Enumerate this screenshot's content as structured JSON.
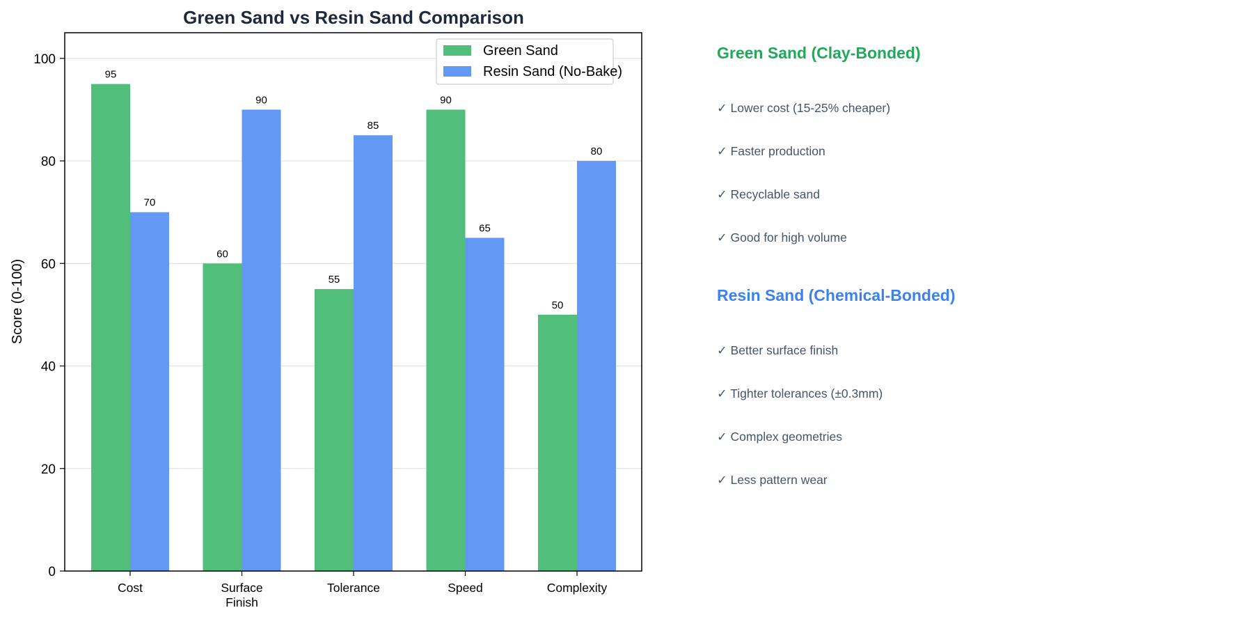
{
  "chart_data": {
    "type": "bar",
    "title": "Green Sand vs Resin Sand Comparison",
    "xlabel": "",
    "ylabel": "Score (0-100)",
    "ylim": [
      0,
      105
    ],
    "yticks": [
      0,
      20,
      40,
      60,
      80,
      100
    ],
    "grid": "horizontal",
    "legend_position": "top-right",
    "categories": [
      [
        "Cost"
      ],
      [
        "Surface",
        "Finish"
      ],
      [
        "Tolerance"
      ],
      [
        "Speed"
      ],
      [
        "Complexity"
      ]
    ],
    "series": [
      {
        "name": "Green Sand",
        "color": "#52be7c",
        "values": [
          95,
          60,
          55,
          90,
          50
        ]
      },
      {
        "name": "Resin Sand (No-Bake)",
        "color": "#6399f5",
        "values": [
          70,
          90,
          85,
          65,
          80
        ]
      }
    ]
  },
  "panel": {
    "green": {
      "heading": "Green Sand (Clay-Bonded)",
      "color": "#22a85a",
      "items": [
        "✓ Lower cost (15-25% cheaper)",
        "✓ Faster production",
        "✓ Recyclable sand",
        "✓ Good for high volume"
      ]
    },
    "resin": {
      "heading": "Resin Sand (Chemical-Bonded)",
      "color": "#3b82f0",
      "items": [
        "✓ Better surface finish",
        "✓ Tighter tolerances (±0.3mm)",
        "✓ Complex geometries",
        "✓ Less pattern wear"
      ]
    }
  }
}
